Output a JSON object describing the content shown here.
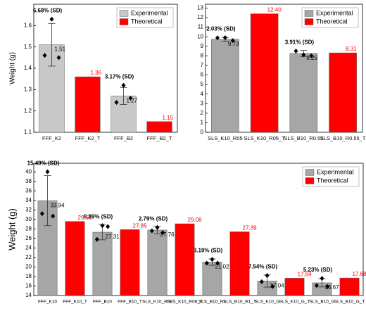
{
  "chart_data": [
    {
      "type": "bar",
      "ylabel": "Weight (g)",
      "ylim": [
        1.1,
        1.7
      ],
      "yticks": [
        1.1,
        1.2,
        1.3,
        1.4,
        1.5,
        1.6
      ],
      "legend": "upper right",
      "categories": [
        "FFF_K2",
        "FFF_K2_T",
        "FFF_B2",
        "FFF_B2_T"
      ],
      "series": [
        {
          "name": "Experimental",
          "color": "#c8c8c8",
          "values": [
            1.51,
            null,
            1.27,
            null
          ],
          "errors": [
            0.1,
            null,
            0.04,
            null
          ],
          "points": [
            [
              1.63,
              1.46,
              1.45
            ],
            null,
            [
              1.32,
              1.24,
              1.26
            ],
            null
          ],
          "annotations": [
            "6.68% (SD)",
            null,
            "3.17% (SD)",
            null
          ]
        },
        {
          "name": "Theoretical",
          "color": "#ff0000",
          "values": [
            null,
            1.36,
            null,
            1.15
          ]
        }
      ]
    },
    {
      "type": "bar",
      "ylim": [
        0,
        13.4
      ],
      "yticks": [
        0,
        1,
        2,
        3,
        4,
        5,
        6,
        7,
        8,
        9,
        10,
        11,
        12,
        13
      ],
      "legend": "upper right",
      "categories": [
        "SLS_K10_R05",
        "SLS_K10_R05_T",
        "SLS_B10_R0.55",
        "SLS_B10_R0.55_T"
      ],
      "series": [
        {
          "name": "Experimental",
          "color": "#a6a6a6",
          "values": [
            9.73,
            null,
            8.25,
            null
          ],
          "errors": [
            0.2,
            null,
            0.32,
            null
          ],
          "points": [
            [
              9.9,
              9.88,
              9.6
            ],
            null,
            [
              8.1,
              8.5,
              8.0
            ],
            null
          ],
          "annotations": [
            "2.03% (SD)",
            null,
            "3.91% (SD)",
            null
          ]
        },
        {
          "name": "Theoretical",
          "color": "#ff0000",
          "values": [
            null,
            12.4,
            null,
            8.31
          ],
          "value_labels": [
            null,
            "12.40",
            null,
            "8.31"
          ]
        }
      ]
    },
    {
      "type": "bar",
      "ylabel": "Weight (g)",
      "ylim": [
        14,
        41.8
      ],
      "yticks": [
        14,
        16,
        18,
        20,
        22,
        24,
        26,
        28,
        30,
        32,
        34,
        36,
        38,
        40
      ],
      "legend": "upper right",
      "categories": [
        "FFF_K10",
        "FFF_K10_T",
        "FFF_B10",
        "FFF_B10_T",
        "SLS_K10_R08",
        "SLS_K10_R08_T",
        "SLS_B10_R1",
        "SLS_B10_R1_T",
        "SLS_K10_G",
        "SLS_K10_G_T",
        "SLS_B10_G",
        "SLS_B10_G_T"
      ],
      "series": [
        {
          "name": "Experimental",
          "color": "#a6a6a6",
          "values": [
            33.94,
            null,
            27.31,
            null,
            27.76,
            null,
            21.02,
            null,
            17.04,
            null,
            16.67,
            null
          ],
          "errors": [
            5.26,
            null,
            1.61,
            null,
            0.77,
            null,
            0.67,
            null,
            1.28,
            null,
            0.87,
            null
          ],
          "points": [
            [
              40.0,
              31.2,
              30.7
            ],
            null,
            [
              28.7,
              25.8,
              28.5
            ],
            null,
            [
              28.3,
              27.6,
              27.2
            ],
            null,
            [
              21.6,
              20.8,
              20.8
            ],
            null,
            [
              18.2,
              16.9,
              15.9
            ],
            null,
            [
              17.6,
              16.1,
              15.9
            ],
            null
          ],
          "annotations": [
            "15.49% (SD)",
            null,
            "5.89% (SD)",
            null,
            "2.79% (SD)",
            null,
            "3.19% (SD)",
            null,
            "7.54% (SD)",
            null,
            "5.23% (SD)",
            null
          ]
        },
        {
          "name": "Theoretical",
          "color": "#ff0000",
          "values": [
            null,
            29.56,
            null,
            27.85,
            null,
            29.08,
            null,
            27.39,
            null,
            17.64,
            null,
            17.68
          ]
        }
      ]
    }
  ]
}
